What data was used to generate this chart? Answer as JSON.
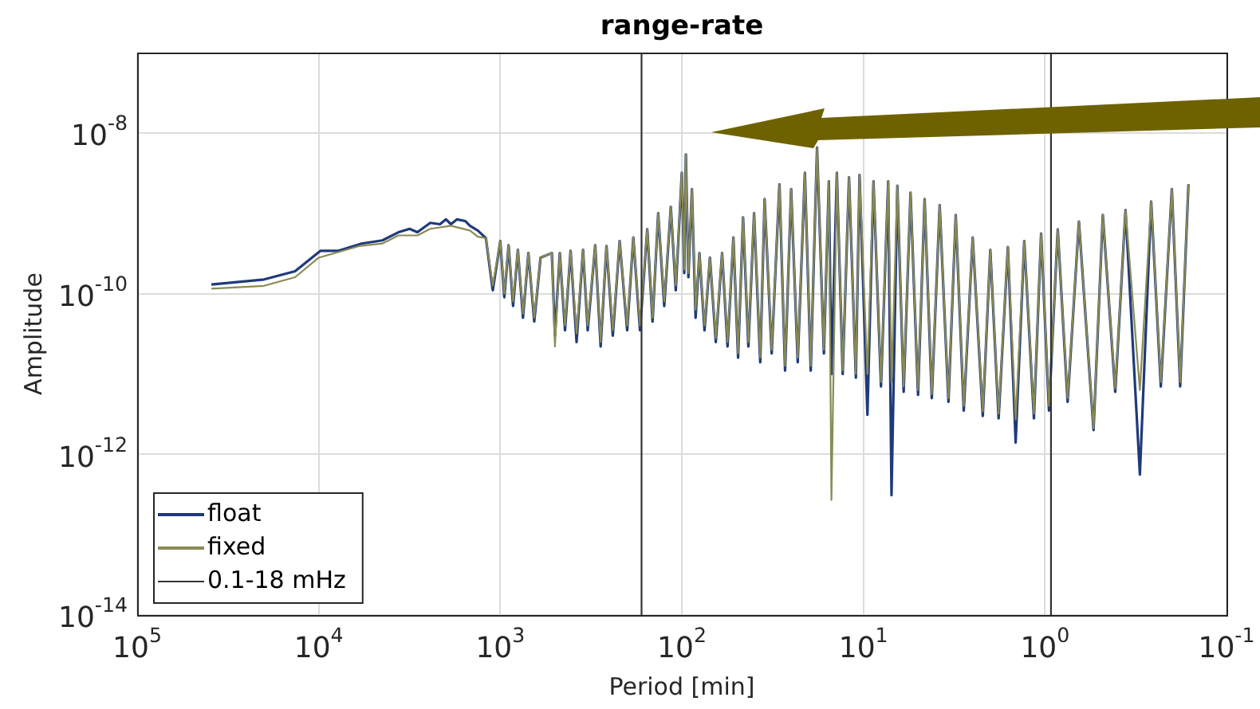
{
  "chart_data": {
    "type": "line",
    "title": "range-rate",
    "xlabel": "Period [min]",
    "ylabel": "Amplitude",
    "log": "xy",
    "grid": true,
    "legend": "bottom left",
    "marker": "none",
    "line_style": "solid",
    "xlim": [
      100000,
      0.1
    ],
    "ylim": [
      1e-14,
      1e-07
    ],
    "xticks": [
      {
        "value": 100000,
        "label": "10$^{5}$"
      },
      {
        "value": 10000,
        "label": "10$^{4}$"
      },
      {
        "value": 1000,
        "label": "10$^{3}$"
      },
      {
        "value": 100,
        "label": "10$^{2}$"
      },
      {
        "value": 10,
        "label": "10$^{1}$"
      },
      {
        "value": 1,
        "label": "10$^{0}$"
      },
      {
        "value": 0.1,
        "label": "10$^{-1}$"
      }
    ],
    "yticks": [
      {
        "value": 1e-14,
        "label": "10$^{-14}$"
      },
      {
        "value": 1e-12,
        "label": "10$^{-12}$"
      },
      {
        "value": 1e-10,
        "label": "10$^{-10}$"
      },
      {
        "value": 1e-08,
        "label": "10$^{-8}$"
      }
    ],
    "series": [
      {
        "name": "0.1-18 mHz",
        "color": "#333333",
        "x": [
          166.7,
          166.7
        ],
        "values": [
          1e-14,
          1e-07
        ]
      },
      {
        "color": "#333333",
        "x": [
          0.926,
          0.926
        ],
        "values": [
          1e-14,
          1e-07
        ]
      },
      {
        "name": "float",
        "color": "#1f3a7a",
        "x": [
          39000,
          20000,
          13500,
          9800,
          7850,
          5800,
          4460,
          3640,
          3160,
          2860,
          2430,
          2150,
          1990,
          1870,
          1730,
          1560,
          1470,
          1330,
          1200,
          1100,
          1000,
          950,
          900,
          850,
          800,
          750,
          700,
          650,
          600,
          520,
          500,
          470,
          440,
          410,
          380,
          350,
          330,
          300,
          280,
          260,
          240,
          220,
          200,
          185,
          170,
          155,
          145,
          135,
          125,
          115,
          108,
          100,
          97,
          95,
          92,
          88,
          84,
          80,
          75,
          70,
          65,
          60,
          56,
          52,
          49,
          46,
          43,
          40,
          37,
          35,
          32,
          29,
          27,
          25,
          23,
          21,
          19.5,
          18,
          16.5,
          15.5,
          15,
          14,
          13,
          12,
          11,
          10.5,
          9.5,
          8.8,
          8,
          7.3,
          7,
          6.5,
          6,
          5.5,
          5,
          4.6,
          4.2,
          3.8,
          3.4,
          3.1,
          2.8,
          2.5,
          2.2,
          2,
          1.8,
          1.6,
          1.45,
          1.3,
          1.15,
          1.05,
          0.95,
          0.85,
          0.75,
          0.65,
          0.54,
          0.48,
          0.41,
          0.36,
          0.3,
          0.26,
          0.23,
          0.2,
          0.18,
          0.162
        ],
        "values": [
          1.3e-10,
          1.5e-10,
          1.9e-10,
          3.4e-10,
          3.4e-10,
          4.2e-10,
          4.6e-10,
          5.8e-10,
          6.4e-10,
          5.8e-10,
          7.6e-10,
          7.3e-10,
          8.4e-10,
          7.3e-10,
          8.4e-10,
          8e-10,
          7e-10,
          6.1e-10,
          4.9e-10,
          1.1e-10,
          4.5e-10,
          9e-11,
          4e-10,
          7e-11,
          3.5e-10,
          5e-11,
          3.2e-10,
          4.5e-11,
          2.8e-10,
          3.2e-10,
          3e-11,
          3.2e-10,
          3.5e-11,
          3.4e-10,
          2.5e-11,
          3.5e-10,
          3.5e-11,
          4e-10,
          2.2e-11,
          3.9e-10,
          3e-11,
          4.5e-10,
          3.5e-11,
          5e-10,
          3.5e-11,
          6.3e-10,
          4.5e-11,
          1e-09,
          7e-11,
          1.2e-09,
          1.1e-10,
          3.2e-09,
          1.8e-10,
          5.4e-09,
          1.6e-10,
          2e-09,
          5e-11,
          3.2e-10,
          3.5e-11,
          2.8e-10,
          2.5e-11,
          3.2e-10,
          2.2e-11,
          5e-10,
          1.6e-11,
          8.9e-10,
          2.2e-11,
          1e-09,
          1.4e-11,
          1.5e-09,
          1.8e-11,
          2.3e-09,
          1.1e-11,
          2e-09,
          1.4e-11,
          3.2e-09,
          1.1e-11,
          6.6e-09,
          1.8e-11,
          2.5e-09,
          1e-11,
          3.2e-09,
          1e-11,
          2.8e-09,
          9e-12,
          3e-09,
          3.1e-12,
          2.5e-09,
          7e-12,
          2.5e-09,
          3.1e-13,
          2.2e-09,
          6e-12,
          1.8e-09,
          5.5e-12,
          1.5e-09,
          5e-12,
          1.26e-09,
          4.5e-12,
          9.5e-10,
          3.5e-12,
          5e-10,
          3e-12,
          3.5e-10,
          2.8e-12,
          3.8e-10,
          1.4e-12,
          4.5e-10,
          2.8e-12,
          5.6e-10,
          3.5e-12,
          6.3e-10,
          4.5e-12,
          7.9e-10,
          2e-12,
          9.5e-10,
          6e-12,
          1.1e-09,
          5.6e-13,
          1.4e-09,
          7e-12,
          2e-09,
          7e-12,
          2.3e-09
        ]
      },
      {
        "name": "fixed",
        "color": "#8a8a55",
        "x": [
          39000,
          20000,
          13500,
          10000,
          6000,
          4460,
          3640,
          2860,
          2430,
          1870,
          1470,
          1330,
          1200,
          1100,
          1000,
          950,
          900,
          850,
          800,
          750,
          700,
          650,
          600,
          520,
          500,
          470,
          440,
          410,
          380,
          350,
          330,
          300,
          280,
          260,
          240,
          220,
          200,
          185,
          170,
          155,
          145,
          135,
          125,
          115,
          108,
          100,
          97,
          95,
          92,
          88,
          84,
          80,
          75,
          70,
          65,
          60,
          56,
          52,
          49,
          46,
          43,
          40,
          37,
          35,
          32,
          29,
          27,
          25,
          23,
          21,
          19.5,
          18,
          16.5,
          15.5,
          15,
          14,
          13,
          12,
          11,
          10.5,
          9.5,
          8.8,
          8,
          7.3,
          7,
          6.5,
          6,
          5.5,
          5,
          4.6,
          4.2,
          3.8,
          3.4,
          3.1,
          2.8,
          2.5,
          2.2,
          2,
          1.8,
          1.6,
          1.45,
          1.3,
          1.15,
          1.05,
          0.95,
          0.85,
          0.75,
          0.65,
          0.54,
          0.48,
          0.41,
          0.36,
          0.3,
          0.26,
          0.23,
          0.2,
          0.18,
          0.162
        ],
        "values": [
          1.15e-10,
          1.25e-10,
          1.6e-10,
          2.8e-10,
          3.9e-10,
          4.2e-10,
          5.3e-10,
          5.3e-10,
          6.4e-10,
          7e-10,
          6.1e-10,
          5.1e-10,
          4.9e-10,
          1.26e-10,
          4.5e-10,
          1e-10,
          4e-10,
          8e-11,
          3.5e-10,
          5.6e-11,
          3.2e-10,
          5e-11,
          2.8e-10,
          3.2e-10,
          2.2e-11,
          3.2e-10,
          4e-11,
          3.4e-10,
          3.2e-11,
          3.5e-10,
          4e-11,
          4e-10,
          2.5e-11,
          3.9e-10,
          3.5e-11,
          4.5e-10,
          4e-11,
          5e-10,
          4e-11,
          6.3e-10,
          5e-11,
          1e-09,
          8e-11,
          1.2e-09,
          1.26e-10,
          3.2e-09,
          2e-10,
          5.4e-09,
          1.8e-10,
          2e-09,
          6.3e-11,
          3.2e-10,
          4e-11,
          2.8e-10,
          2.8e-11,
          3.2e-10,
          2.5e-11,
          5e-10,
          1.8e-11,
          8.9e-10,
          2.5e-11,
          1e-09,
          1.6e-11,
          1.5e-09,
          2e-11,
          2.3e-09,
          1.26e-11,
          2e-09,
          1.6e-11,
          3.2e-09,
          1.26e-11,
          6.6e-09,
          2e-11,
          2.5e-09,
          2.7e-13,
          3.2e-09,
          1.1e-11,
          2.8e-09,
          1e-11,
          3e-09,
          1e-11,
          2.5e-09,
          7.9e-12,
          2.5e-09,
          7.9e-12,
          2.2e-09,
          7e-12,
          1.8e-09,
          6.3e-12,
          1.5e-09,
          5.6e-12,
          1.26e-09,
          5e-12,
          9.5e-10,
          4e-12,
          5e-10,
          3.4e-12,
          3.5e-10,
          3.2e-12,
          3.8e-10,
          2.7e-12,
          4.5e-10,
          3.2e-12,
          5.6e-10,
          4e-12,
          6.3e-10,
          5e-12,
          7.9e-10,
          2.1e-12,
          9.5e-10,
          6.6e-12,
          1.1e-09,
          6.3e-12,
          1.4e-09,
          7.9e-12,
          2e-09,
          7.9e-12,
          2.3e-09
        ]
      }
    ]
  }
}
